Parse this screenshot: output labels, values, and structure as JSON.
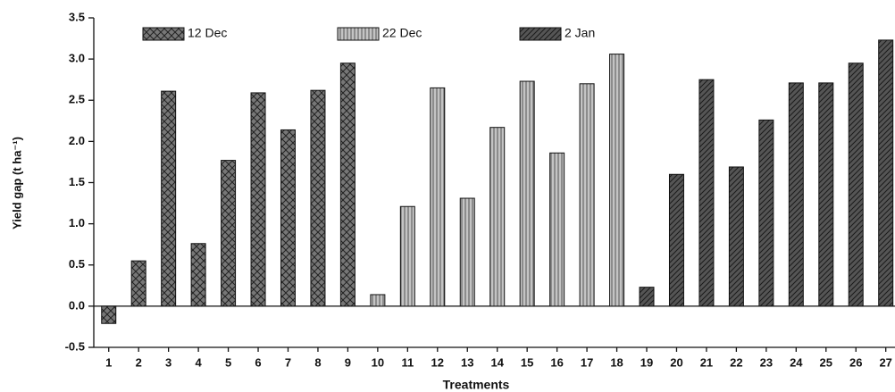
{
  "chart_data": {
    "type": "bar",
    "x_label": "Treatments",
    "y_label": "Yield gap (t ha⁻¹)",
    "categories": [
      "1",
      "2",
      "3",
      "4",
      "5",
      "6",
      "7",
      "8",
      "9",
      "10",
      "11",
      "12",
      "13",
      "14",
      "15",
      "16",
      "17",
      "18",
      "19",
      "20",
      "21",
      "22",
      "23",
      "24",
      "25",
      "26",
      "27"
    ],
    "series": [
      {
        "name": "12 Dec",
        "color": "#555555",
        "values": [
          -0.21,
          0.55,
          2.61,
          0.76,
          1.77,
          2.59,
          2.14,
          2.62,
          2.95,
          null,
          null,
          null,
          null,
          null,
          null,
          null,
          null,
          null,
          null,
          null,
          null,
          null,
          null,
          null,
          null,
          null,
          null
        ]
      },
      {
        "name": "22 Dec",
        "color": "#a8a8a8",
        "values": [
          null,
          null,
          null,
          null,
          null,
          null,
          null,
          null,
          null,
          0.14,
          1.21,
          2.65,
          1.31,
          2.17,
          2.73,
          1.86,
          2.7,
          3.06,
          null,
          null,
          null,
          null,
          null,
          null,
          null,
          null,
          null
        ]
      },
      {
        "name": "2 Jan",
        "color": "#4a4a4a",
        "values": [
          null,
          null,
          null,
          null,
          null,
          null,
          null,
          null,
          null,
          null,
          null,
          null,
          null,
          null,
          null,
          null,
          null,
          null,
          0.23,
          1.6,
          2.75,
          1.69,
          2.26,
          2.71,
          2.71,
          2.95,
          3.23
        ]
      }
    ],
    "ylim": [
      -0.5,
      3.5
    ],
    "yticks": [
      -0.5,
      {
        "value": 0,
        "label": "0.0"
      },
      0.5,
      {
        "value": 1,
        "label": "1.0"
      },
      1.5,
      {
        "value": 2,
        "label": "2.0"
      },
      2.5,
      {
        "value": 3,
        "label": "3.0"
      },
      3.5
    ],
    "legend": "top"
  }
}
